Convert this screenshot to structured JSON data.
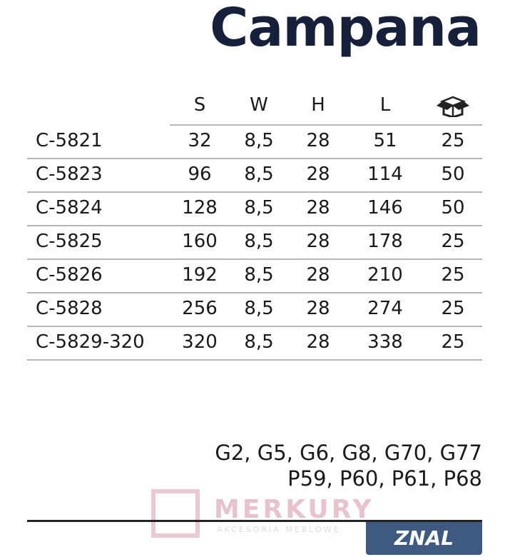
{
  "title": "Campana",
  "table": {
    "headers": [
      "",
      "S",
      "W",
      "H",
      "L"
    ],
    "box_icon": "box-icon",
    "rows": [
      [
        "C-5821",
        "32",
        "8,5",
        "28",
        "51",
        "25"
      ],
      [
        "C-5823",
        "96",
        "8,5",
        "28",
        "114",
        "50"
      ],
      [
        "C-5824",
        "128",
        "8,5",
        "28",
        "146",
        "50"
      ],
      [
        "C-5825",
        "160",
        "8,5",
        "28",
        "178",
        "25"
      ],
      [
        "C-5826",
        "192",
        "8,5",
        "28",
        "210",
        "25"
      ],
      [
        "C-5828",
        "256",
        "8,5",
        "28",
        "274",
        "25"
      ],
      [
        "C-5829-320",
        "320",
        "8,5",
        "28",
        "338",
        "25"
      ]
    ]
  },
  "finishes": {
    "line1": "G2, G5, G6, G8, G70, G77",
    "line2": "P59, P60, P61, P68"
  },
  "watermark": {
    "name": "MERKURY",
    "sub": "AKCESORIA MEBLOWE"
  },
  "finish_badge": "ZNAL",
  "colors": {
    "title": "#17203a",
    "badge": "#3f5a80"
  }
}
